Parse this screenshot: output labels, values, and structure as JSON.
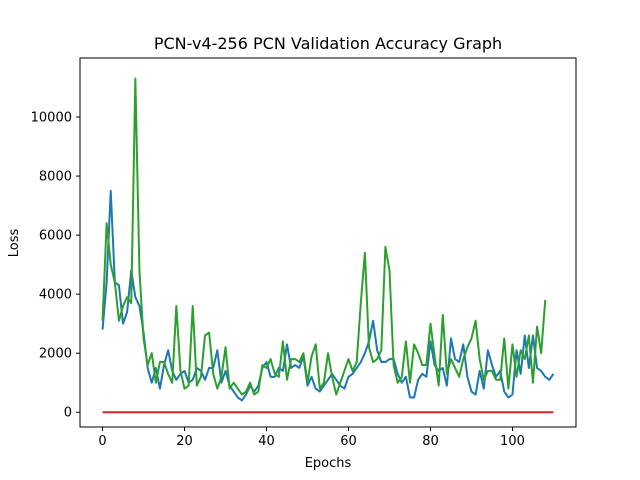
{
  "chart_data": {
    "type": "line",
    "title": "PCN-v4-256 PCN Validation Accuracy Graph",
    "xlabel": "Epochs",
    "ylabel": "Loss",
    "xlim": [
      -5.5,
      115.5
    ],
    "ylim": [
      -500,
      12000
    ],
    "xticks": [
      0,
      20,
      40,
      60,
      80,
      100
    ],
    "yticks": [
      0,
      2000,
      4000,
      6000,
      8000,
      10000
    ],
    "grid": false,
    "legend": "none",
    "series": [
      {
        "color": "#1f77b4",
        "x": [
          0,
          1,
          2,
          3,
          4,
          5,
          6,
          7,
          8,
          9,
          10,
          11,
          12,
          13,
          14,
          15,
          16,
          17,
          18,
          19,
          20,
          21,
          22,
          23,
          24,
          25,
          26,
          27,
          28,
          29,
          30,
          31,
          32,
          33,
          34,
          35,
          36,
          37,
          38,
          39,
          40,
          41,
          42,
          43,
          44,
          45,
          46,
          47,
          48,
          49,
          50,
          51,
          52,
          53,
          54,
          55,
          56,
          57,
          58,
          59,
          60,
          61,
          62,
          63,
          64,
          65,
          66,
          67,
          68,
          69,
          70,
          71,
          72,
          73,
          74,
          75,
          76,
          77,
          78,
          79,
          80,
          81,
          82,
          83,
          84,
          85,
          86,
          87,
          88,
          89,
          90,
          91,
          92,
          93,
          94,
          95,
          96,
          97,
          98,
          99,
          100,
          101,
          102,
          103,
          104,
          105,
          106,
          107,
          108,
          109,
          110
        ],
        "y": [
          2800,
          4400,
          7500,
          4400,
          4300,
          3000,
          3400,
          4800,
          3900,
          3600,
          2700,
          1500,
          1000,
          1500,
          800,
          1600,
          2100,
          1400,
          1100,
          1300,
          1400,
          1000,
          1100,
          1500,
          1400,
          1100,
          1500,
          1500,
          2100,
          1000,
          1400,
          900,
          700,
          500,
          400,
          600,
          900,
          700,
          900,
          1500,
          1700,
          1200,
          1200,
          1500,
          1400,
          2300,
          1500,
          1600,
          1500,
          1900,
          900,
          1200,
          800,
          700,
          900,
          1100,
          1300,
          1100,
          900,
          800,
          1200,
          1300,
          1500,
          1700,
          2000,
          2400,
          3100,
          2100,
          1700,
          1700,
          1800,
          1800,
          1300,
          1000,
          1200,
          500,
          500,
          1100,
          1300,
          1200,
          2400,
          1600,
          1400,
          1500,
          900,
          2500,
          1800,
          1700,
          2300,
          1200,
          700,
          600,
          1400,
          800,
          2100,
          1600,
          1200,
          1400,
          700,
          500,
          600,
          2100,
          1300,
          2600,
          1500,
          2600,
          1500,
          1400,
          1200,
          1100,
          1300
        ]
      },
      {
        "color": "#2ca02c",
        "x": [
          0,
          1,
          2,
          3,
          4,
          5,
          6,
          7,
          8,
          9,
          10,
          11,
          12,
          13,
          14,
          15,
          16,
          17,
          18,
          19,
          20,
          21,
          22,
          23,
          24,
          25,
          26,
          27,
          28,
          29,
          30,
          31,
          32,
          33,
          34,
          35,
          36,
          37,
          38,
          39,
          40,
          41,
          42,
          43,
          44,
          45,
          46,
          47,
          48,
          49,
          50,
          51,
          52,
          53,
          54,
          55,
          56,
          57,
          58,
          59,
          60,
          61,
          62,
          63,
          64,
          65,
          66,
          67,
          68,
          69,
          70,
          71,
          72,
          73,
          74,
          75,
          76,
          77,
          78,
          79,
          80,
          81,
          82,
          83,
          84,
          85,
          86,
          87,
          88,
          89,
          90,
          91,
          92,
          93,
          94,
          95,
          96,
          97,
          98,
          99,
          100,
          101,
          102,
          103,
          104,
          105,
          106,
          107,
          108,
          109,
          110
        ],
        "y": [
          3100,
          6400,
          5000,
          4400,
          3100,
          3600,
          3900,
          3700,
          11300,
          4800,
          2500,
          1600,
          2000,
          1000,
          1700,
          1700,
          1300,
          1000,
          3600,
          1400,
          800,
          900,
          3600,
          900,
          1200,
          2600,
          2700,
          1300,
          800,
          1200,
          2200,
          800,
          1000,
          800,
          600,
          700,
          1000,
          600,
          700,
          1600,
          1500,
          1800,
          1300,
          1200,
          2400,
          1100,
          1800,
          1800,
          1700,
          2000,
          1000,
          1900,
          2300,
          800,
          1000,
          2000,
          1200,
          600,
          1000,
          1400,
          1800,
          1400,
          1700,
          3700,
          5400,
          2200,
          1700,
          1800,
          2100,
          5600,
          4800,
          1600,
          1000,
          1200,
          2400,
          1000,
          2300,
          2000,
          1600,
          1600,
          3000,
          1900,
          900,
          3300,
          1300,
          1800,
          1500,
          1200,
          1800,
          2200,
          2500,
          3100,
          1800,
          1100,
          1400,
          1400,
          1100,
          1100,
          2500,
          800,
          2300,
          1200,
          2100,
          1800,
          2600,
          1000,
          2900,
          2000,
          3800,
          null,
          null
        ]
      },
      {
        "color": "#d62728",
        "x": [
          0,
          110
        ],
        "y": [
          0,
          0
        ]
      }
    ]
  }
}
